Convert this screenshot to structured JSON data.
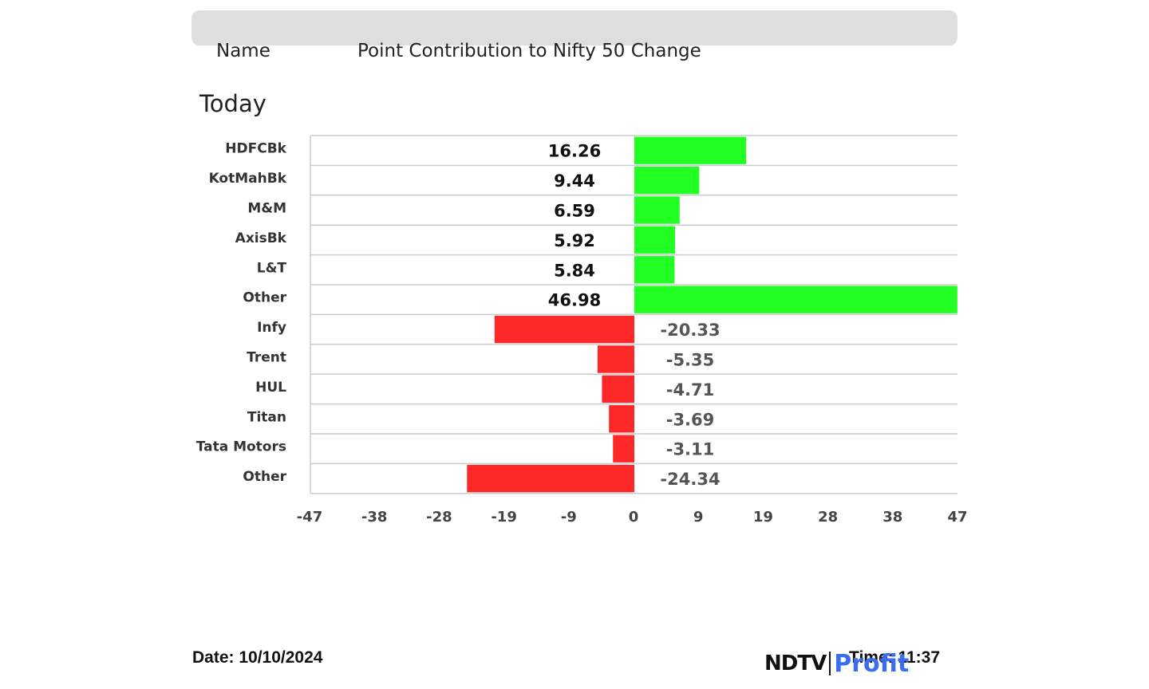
{
  "header": {
    "name_label": "Name",
    "title": "Point Contribution to Nifty 50 Change"
  },
  "period_label": "Today",
  "footer": {
    "date": "Date: 10/10/2024",
    "time": "Time: 11:37",
    "logo_left": "NDTV",
    "logo_right": "Profit"
  },
  "colors": {
    "positive": "#22ff22",
    "negative": "#ff2828",
    "grid": "#cccccc"
  },
  "chart_data": {
    "type": "bar",
    "orientation": "horizontal",
    "categories": [
      "HDFCBk",
      "KotMahBk",
      "M&M",
      "AxisBk",
      "L&T",
      "Other",
      "Infy",
      "Trent",
      "HUL",
      "Titan",
      "Tata Motors",
      "Other"
    ],
    "values": [
      16.26,
      9.44,
      6.59,
      5.92,
      5.84,
      46.98,
      -20.33,
      -5.35,
      -4.71,
      -3.69,
      -3.11,
      -24.34
    ],
    "data_labels": [
      "16.26",
      "9.44",
      "6.59",
      "5.92",
      "5.84",
      "46.98",
      "-20.33",
      "-5.35",
      "-4.71",
      "-3.69",
      "-3.11",
      "-24.34"
    ],
    "xlim": [
      -47,
      47
    ],
    "xticks": [
      "-47",
      "-38",
      "-28",
      "-19",
      "-9",
      "0",
      "9",
      "19",
      "28",
      "38",
      "47"
    ],
    "grid": "horizontal"
  }
}
